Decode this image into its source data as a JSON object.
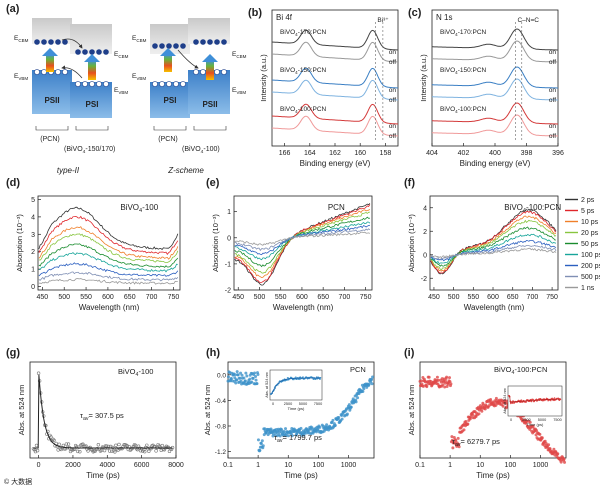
{
  "figure": {
    "panel_labels": [
      "(a)",
      "(b)",
      "(c)",
      "(d)",
      "(e)",
      "(f)",
      "(g)",
      "(h)",
      "(i)"
    ],
    "watermark": "© 大数据"
  },
  "diagram_a": {
    "left": {
      "labels": [
        "E",
        "CBM",
        "E",
        "CBM",
        "E",
        "VBM",
        "E",
        "VBM"
      ],
      "boxes": [
        "PSII",
        "PSI"
      ],
      "bottom": [
        "(PCN)",
        "(BiVO",
        "4",
        "-150/170)"
      ],
      "caption": "type-II"
    },
    "right": {
      "labels": [
        "E",
        "CBM",
        "E",
        "CBM",
        "E",
        "VBM",
        "E",
        "VBM"
      ],
      "boxes": [
        "PSI",
        "PSII"
      ],
      "bottom": [
        "(PCN)",
        "(BiVO",
        "4",
        "-100)"
      ],
      "caption": "Z-scheme"
    }
  },
  "chart_data": [
    {
      "panel": "(b)",
      "type": "line",
      "title": "Bi 4f",
      "annotation": "Bi³⁺",
      "xlabel": "Binding energy (eV)",
      "ylabel": "Intensity (a.u.)",
      "xlim": [
        167,
        157
      ],
      "xticks": [
        166,
        164,
        162,
        160,
        158
      ],
      "series": [
        {
          "name": "BiVO₄-170:PCN",
          "state": "on",
          "color": "#444444"
        },
        {
          "name": "BiVO₄-170:PCN",
          "state": "off",
          "color": "#999999"
        },
        {
          "name": "BiVO₄-150:PCN",
          "state": "on",
          "color": "#3a7fc4"
        },
        {
          "name": "BiVO₄-150:PCN",
          "state": "off",
          "color": "#7fb3e0"
        },
        {
          "name": "BiVO₄-100:PCN",
          "state": "on",
          "color": "#d43a3a"
        },
        {
          "name": "BiVO₄-100:PCN",
          "state": "off",
          "color": "#f09a9a"
        }
      ],
      "labels": [
        "BiVO",
        "4",
        "-170:PCN",
        "BiVO",
        "4",
        "-150:PCN",
        "BiVO",
        "4",
        "-100:PCN",
        "on",
        "off",
        "on",
        "off",
        "on",
        "off"
      ]
    },
    {
      "panel": "(c)",
      "type": "line",
      "title": "N 1s",
      "annotation": "C–N=C",
      "xlabel": "Binding energy (eV)",
      "ylabel": "Intensity (a.u.)",
      "xlim": [
        404,
        396
      ],
      "xticks": [
        404,
        402,
        400,
        398,
        396
      ],
      "series": [
        {
          "name": "BiVO₄-170:PCN",
          "state": "on",
          "color": "#444444"
        },
        {
          "name": "BiVO₄-170:PCN",
          "state": "off",
          "color": "#999999"
        },
        {
          "name": "BiVO₄-150:PCN",
          "state": "on",
          "color": "#3a7fc4"
        },
        {
          "name": "BiVO₄-150:PCN",
          "state": "off",
          "color": "#7fb3e0"
        },
        {
          "name": "BiVO₄-100:PCN",
          "state": "on",
          "color": "#d43a3a"
        },
        {
          "name": "BiVO₄-100:PCN",
          "state": "off",
          "color": "#f09a9a"
        }
      ],
      "labels": [
        "BiVO",
        "4",
        "-170:PCN",
        "BiVO",
        "4",
        "-150:PCN",
        "BiVO",
        "4",
        "-100:PCN",
        "on",
        "off",
        "on",
        "off",
        "on",
        "off"
      ]
    },
    {
      "panel": "(d)",
      "type": "line",
      "title": "BiVO₄-100",
      "xlabel": "Wavelength (nm)",
      "ylabel": "Absorption (10⁻³)",
      "xlim": [
        440,
        765
      ],
      "xticks": [
        450,
        500,
        550,
        600,
        650,
        700,
        750
      ],
      "ylim": [
        -0.2,
        5.2
      ],
      "yticks": [
        0,
        1,
        2,
        3,
        4,
        5
      ],
      "title_parts": [
        "BiVO",
        "4",
        "-100"
      ]
    },
    {
      "panel": "(e)",
      "type": "line",
      "title": "PCN",
      "xlabel": "Wavelength (nm)",
      "ylabel": "Absorption (10⁻³)",
      "xlim": [
        440,
        765
      ],
      "xticks": [
        450,
        500,
        550,
        600,
        650,
        700,
        750
      ],
      "ylim": [
        -2,
        1.6
      ],
      "yticks": [
        -2,
        -1,
        0,
        1
      ]
    },
    {
      "panel": "(f)",
      "type": "line",
      "title": "BiVO₄-100:PCN",
      "xlabel": "Wavelength (nm)",
      "ylabel": "Absorption (10⁻³)",
      "xlim": [
        440,
        765
      ],
      "xticks": [
        450,
        500,
        550,
        600,
        650,
        700,
        750
      ],
      "ylim": [
        -3,
        5
      ],
      "yticks": [
        -2,
        0,
        2,
        4
      ],
      "title_parts": [
        "BiVO",
        "4",
        "-100:PCN"
      ],
      "legend": [
        "2 ps",
        "5 ps",
        "10 ps",
        "20 ps",
        "50 ps",
        "100 ps",
        "200 ps",
        "500 ps",
        "1 ns"
      ],
      "legend_colors": [
        "#333333",
        "#e0262b",
        "#f07f2a",
        "#88c53f",
        "#1a8c2e",
        "#18a59a",
        "#2b5fc0",
        "#7f8fb4",
        "#9a9a9a"
      ]
    },
    {
      "panel": "(g)",
      "type": "scatter",
      "title": "BiVO₄-100",
      "title_parts": [
        "BiVO",
        "4",
        "-100"
      ],
      "annotation_parts": [
        "τ",
        "av",
        "= 307.5 ps"
      ],
      "xlabel": "Time (ps)",
      "ylabel": "Abs. at 524 nm",
      "xlim": [
        -500,
        8000
      ],
      "xticks": [
        0,
        2000,
        4000,
        6000,
        8000
      ],
      "tau_ps": 307.5,
      "color": "#777777"
    },
    {
      "panel": "(h)",
      "type": "scatter",
      "title": "PCN",
      "annotation_parts": [
        "τ",
        "av",
        "= 1799.7 ps"
      ],
      "xlabel": "Time (ps)",
      "ylabel": "Abs. at 524 nm",
      "xscale": "log",
      "xlim": [
        0.1,
        7000
      ],
      "xticks": [
        0.1,
        1,
        10,
        100,
        1000
      ],
      "xticklabels": [
        "0.1",
        "1",
        "10",
        "100",
        "1000"
      ],
      "ylim": [
        -1.3,
        0.2
      ],
      "yticks": [
        0,
        -0.4,
        -0.8,
        -1.2
      ],
      "yticklabels": [
        "0.0",
        "-0.4",
        "-0.8",
        "-1.2"
      ],
      "tau_ps": 1799.7,
      "color": "#3d92c9",
      "inset": {
        "xlabel": "Time (ps)",
        "ylabel": "Abs. at 524 nm",
        "xticks": [
          "0",
          "2500",
          "5000",
          "7500"
        ]
      }
    },
    {
      "panel": "(i)",
      "type": "scatter",
      "title": "BiVO₄-100:PCN",
      "title_parts": [
        "BiVO",
        "4",
        "-100:PCN"
      ],
      "annotation_parts": [
        "τ",
        "av",
        "= 6279.7 ps"
      ],
      "xlabel": "Time (ps)",
      "ylabel": "Abs. at 524 nm",
      "xscale": "log",
      "xlim": [
        0.1,
        7000
      ],
      "xticks": [
        0.1,
        1,
        10,
        100,
        1000
      ],
      "xticklabels": [
        "0.1",
        "1",
        "10",
        "100",
        "1000"
      ],
      "tau_ps": 6279.7,
      "color": "#e04848",
      "inset": {
        "xlabel": "Time (ps)",
        "ylabel": "Abs. at 524 nm",
        "xticks": [
          "0",
          "2500",
          "5000",
          "7500"
        ]
      }
    }
  ]
}
